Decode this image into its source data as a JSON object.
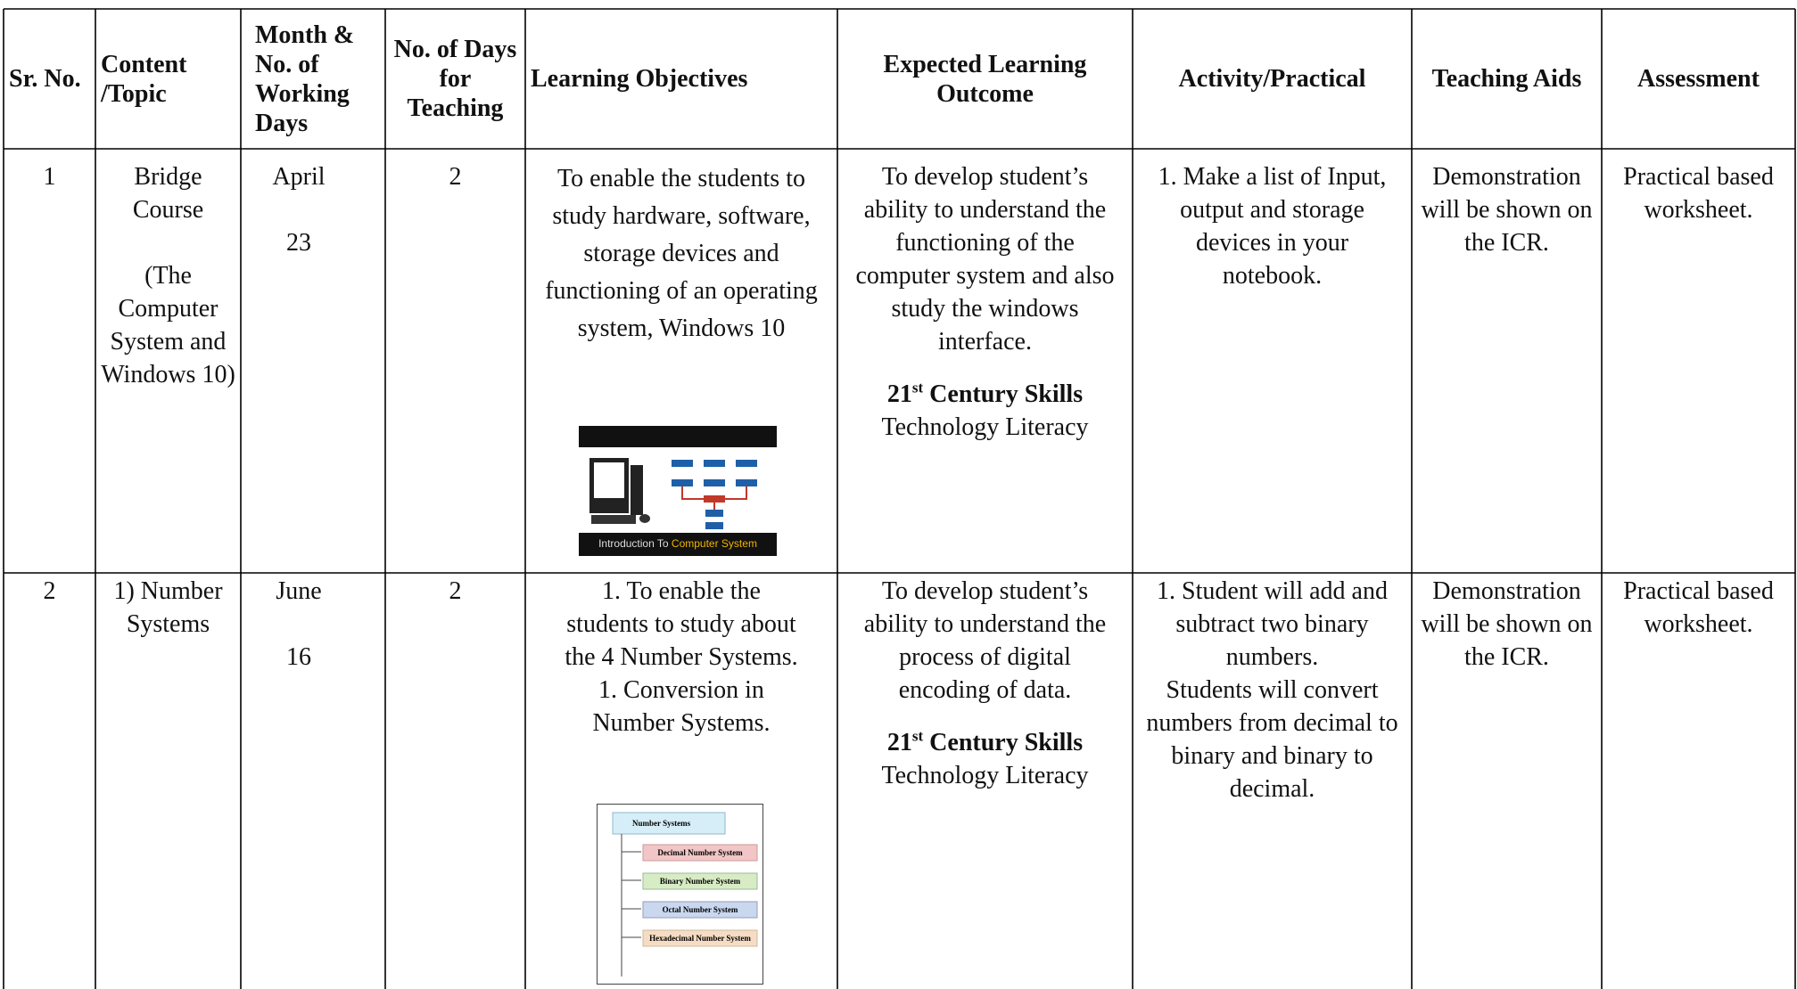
{
  "table": {
    "headers": [
      "Sr. No.",
      "Content /Topic",
      "Month & No. of Working Days",
      "No. of Days for Teaching",
      "Learning Objectives",
      "Expected Learning Outcome",
      "Activity/Practical",
      "Teaching Aids",
      "Assessment"
    ],
    "rows": [
      {
        "sr": 1,
        "topic": [
          "Bridge Course",
          "(The Computer System and Windows 10)"
        ],
        "month": [
          "April",
          23
        ],
        "days": 2,
        "objectives": [
          "To enable the students to study hardware, software, storage devices and functioning of an operating system, Windows 10"
        ],
        "outcome": {
          "text": "To develop student’s ability to understand the functioning of the computer system and also study the windows interface.",
          "skills": [
            "21",
            "st",
            " Century Skills"
          ],
          "skill": "Technology Literacy"
        },
        "activity": [
          "1.  Make a list of Input, output and storage devices in your notebook."
        ],
        "aids": "Demonstration will be shown on the ICR.",
        "assessment": "Practical based worksheet."
      },
      {
        "sr": 2,
        "topic": [
          "1) Number Systems"
        ],
        "month": [
          "June",
          16
        ],
        "days": 2,
        "objectives": [
          "1.  To enable the students to study about the 4 Number Systems.",
          "1.  Conversion in Number Systems."
        ],
        "outcome": {
          "text": "To develop student’s ability to understand the process of digital encoding of data.",
          "skills": [
            "21",
            "st",
            " Century Skills"
          ],
          "skill": "Technology Literacy"
        },
        "activity": [
          "1. Student will add and subtract two binary numbers.",
          "Students will convert numbers from decimal to binary and binary to decimal."
        ],
        "aids": "Demonstration will be shown on the ICR.",
        "assessment": "Practical based worksheet."
      }
    ]
  },
  "images": [
    {
      "caption": [
        "Introduction To ",
        "Computer System"
      ]
    },
    {
      "labels": [
        "Number Systems",
        "Decimal Number System",
        "Binary Number System",
        "Octal Number System",
        "Hexadecimal Number System"
      ]
    }
  ]
}
